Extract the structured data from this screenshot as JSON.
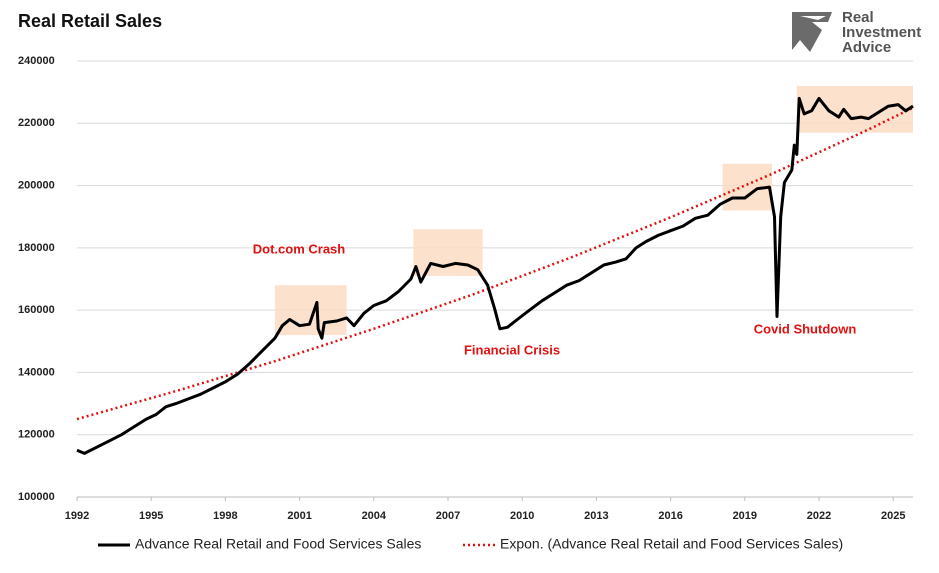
{
  "chart_data": {
    "type": "line",
    "title": "Real Retail Sales",
    "xlim": [
      1992,
      2025.8
    ],
    "ylim": [
      100000,
      240000
    ],
    "xticks": [
      1992,
      1995,
      1998,
      2001,
      2004,
      2007,
      2010,
      2013,
      2016,
      2019,
      2022,
      2025
    ],
    "yticks": [
      100000,
      120000,
      140000,
      160000,
      180000,
      200000,
      220000,
      240000
    ],
    "grid": true,
    "series": [
      {
        "name": "Advance Real Retail and Food Services Sales",
        "color": "#000000",
        "style": "solid",
        "x": [
          1992.0,
          1992.3,
          1992.8,
          1993.3,
          1993.8,
          1994.3,
          1994.8,
          1995.2,
          1995.6,
          1996.0,
          1996.5,
          1997.0,
          1997.5,
          1998.0,
          1998.5,
          1999.0,
          1999.5,
          2000.0,
          2000.3,
          2000.6,
          2001.0,
          2001.4,
          2001.7,
          2001.75,
          2001.9,
          2002.0,
          2002.5,
          2002.9,
          2003.2,
          2003.6,
          2004.0,
          2004.5,
          2005.0,
          2005.5,
          2005.7,
          2005.9,
          2006.3,
          2006.8,
          2007.3,
          2007.8,
          2008.2,
          2008.6,
          2008.9,
          2009.1,
          2009.4,
          2009.8,
          2010.3,
          2010.8,
          2011.3,
          2011.8,
          2012.3,
          2012.8,
          2013.3,
          2013.8,
          2014.2,
          2014.6,
          2015.0,
          2015.5,
          2016.0,
          2016.5,
          2017.0,
          2017.5,
          2018.0,
          2018.5,
          2019.0,
          2019.5,
          2020.0,
          2020.2,
          2020.3,
          2020.45,
          2020.6,
          2020.9,
          2021.0,
          2021.1,
          2021.2,
          2021.4,
          2021.7,
          2022.0,
          2022.4,
          2022.8,
          2023.0,
          2023.3,
          2023.7,
          2024.0,
          2024.4,
          2024.8,
          2025.2,
          2025.5,
          2025.8
        ],
        "values": [
          115000,
          114000,
          116000,
          118000,
          120000,
          122500,
          125000,
          126500,
          129000,
          130000,
          131500,
          133000,
          135000,
          137000,
          139500,
          143000,
          147000,
          151000,
          155000,
          157000,
          155000,
          155500,
          162500,
          154000,
          151000,
          156000,
          156500,
          157500,
          155000,
          159000,
          161500,
          163000,
          166000,
          170000,
          174000,
          169000,
          175000,
          174000,
          175000,
          174500,
          173000,
          168000,
          160000,
          154000,
          154500,
          157000,
          160000,
          163000,
          165500,
          168000,
          169500,
          172000,
          174500,
          175500,
          176500,
          180000,
          182000,
          184000,
          185500,
          187000,
          189500,
          190500,
          194000,
          196000,
          196000,
          199000,
          199500,
          190000,
          158000,
          190000,
          201000,
          205000,
          213000,
          210000,
          228000,
          223000,
          224000,
          228000,
          224000,
          222000,
          224500,
          221500,
          222000,
          221500,
          223500,
          225500,
          226000,
          224000,
          225500
        ]
      },
      {
        "name": "Expon. (Advance Real Retail and Food Services Sales)",
        "color": "#e01010",
        "style": "dotted",
        "x": [
          1992,
          1996,
          2000,
          2004,
          2008,
          2012,
          2016,
          2020,
          2024,
          2025.8
        ],
        "values": [
          125000,
          134000,
          143600,
          154000,
          165000,
          177000,
          189800,
          203400,
          218000,
          225000
        ]
      }
    ],
    "highlights": {
      "color": "#fbdcc4",
      "regions": [
        {
          "x": [
            2000.0,
            2002.9
          ],
          "y": [
            152000,
            168000
          ]
        },
        {
          "x": [
            2005.6,
            2008.4
          ],
          "y": [
            171000,
            186000
          ]
        },
        {
          "x": [
            2018.1,
            2020.1
          ],
          "y": [
            192000,
            207000
          ]
        },
        {
          "x": [
            2021.1,
            2025.8
          ],
          "y": [
            217000,
            232000
          ]
        }
      ]
    },
    "annotations": [
      {
        "text": "Dot.com Crash"
      },
      {
        "text": "Financial Crisis"
      },
      {
        "text": "Covid Shutdown"
      }
    ],
    "annotation_color": "#e01010"
  },
  "logo": [
    "Real",
    "Investment",
    "Advice"
  ]
}
